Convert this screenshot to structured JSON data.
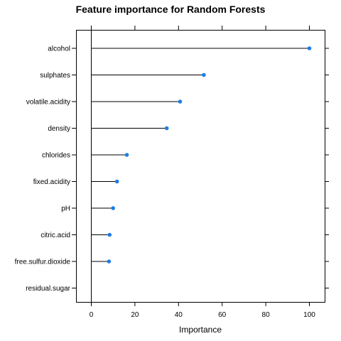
{
  "chart_data": {
    "type": "dotplot",
    "title": "Feature importance for Random Forests",
    "xlabel": "Importance",
    "ylabel": "",
    "xlim": [
      -7,
      107
    ],
    "xticks": [
      0,
      20,
      40,
      60,
      80,
      100
    ],
    "grid": false,
    "legend": "none",
    "point_color": "#1e7ee6",
    "baseline": 0,
    "categories": [
      "alcohol",
      "sulphates",
      "volatile.acidity",
      "density",
      "chlorides",
      "fixed.acidity",
      "pH",
      "citric.acid",
      "free.sulfur.dioxide",
      "residual.sugar"
    ],
    "values": [
      100,
      51.6,
      40.7,
      34.6,
      16.3,
      11.8,
      10.0,
      8.4,
      8.1,
      0
    ]
  }
}
